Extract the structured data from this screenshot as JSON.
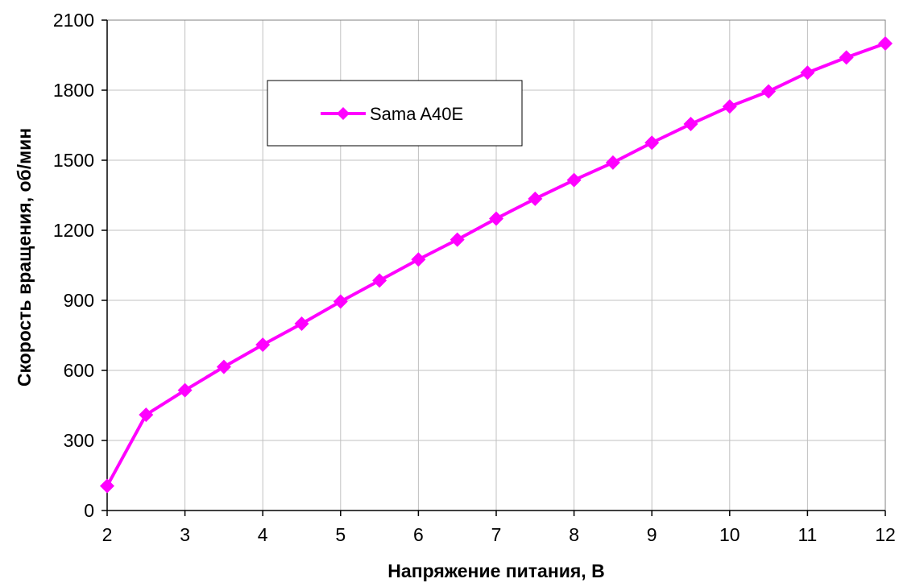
{
  "chart_data": {
    "type": "line",
    "xlabel": "Напряжение питания, В",
    "ylabel": "Скорость вращения, об/мин",
    "xlim": [
      2,
      12
    ],
    "ylim": [
      0,
      2100
    ],
    "xticks": [
      2,
      3,
      4,
      5,
      6,
      7,
      8,
      9,
      10,
      11,
      12
    ],
    "yticks": [
      0,
      300,
      600,
      900,
      1200,
      1500,
      1800,
      2100
    ],
    "grid": true,
    "legend_position": "top-left",
    "series": [
      {
        "name": "Sama A40E",
        "color": "#ff00ff",
        "marker": "diamond",
        "x": [
          2,
          2.5,
          3,
          3.5,
          4,
          4.5,
          5,
          5.5,
          6,
          6.5,
          7,
          7.5,
          8,
          8.5,
          9,
          9.5,
          10,
          10.5,
          11,
          11.5,
          12
        ],
        "y": [
          105,
          410,
          515,
          615,
          710,
          800,
          895,
          985,
          1075,
          1160,
          1250,
          1335,
          1415,
          1490,
          1575,
          1655,
          1730,
          1795,
          1875,
          1940,
          2000
        ]
      }
    ]
  }
}
